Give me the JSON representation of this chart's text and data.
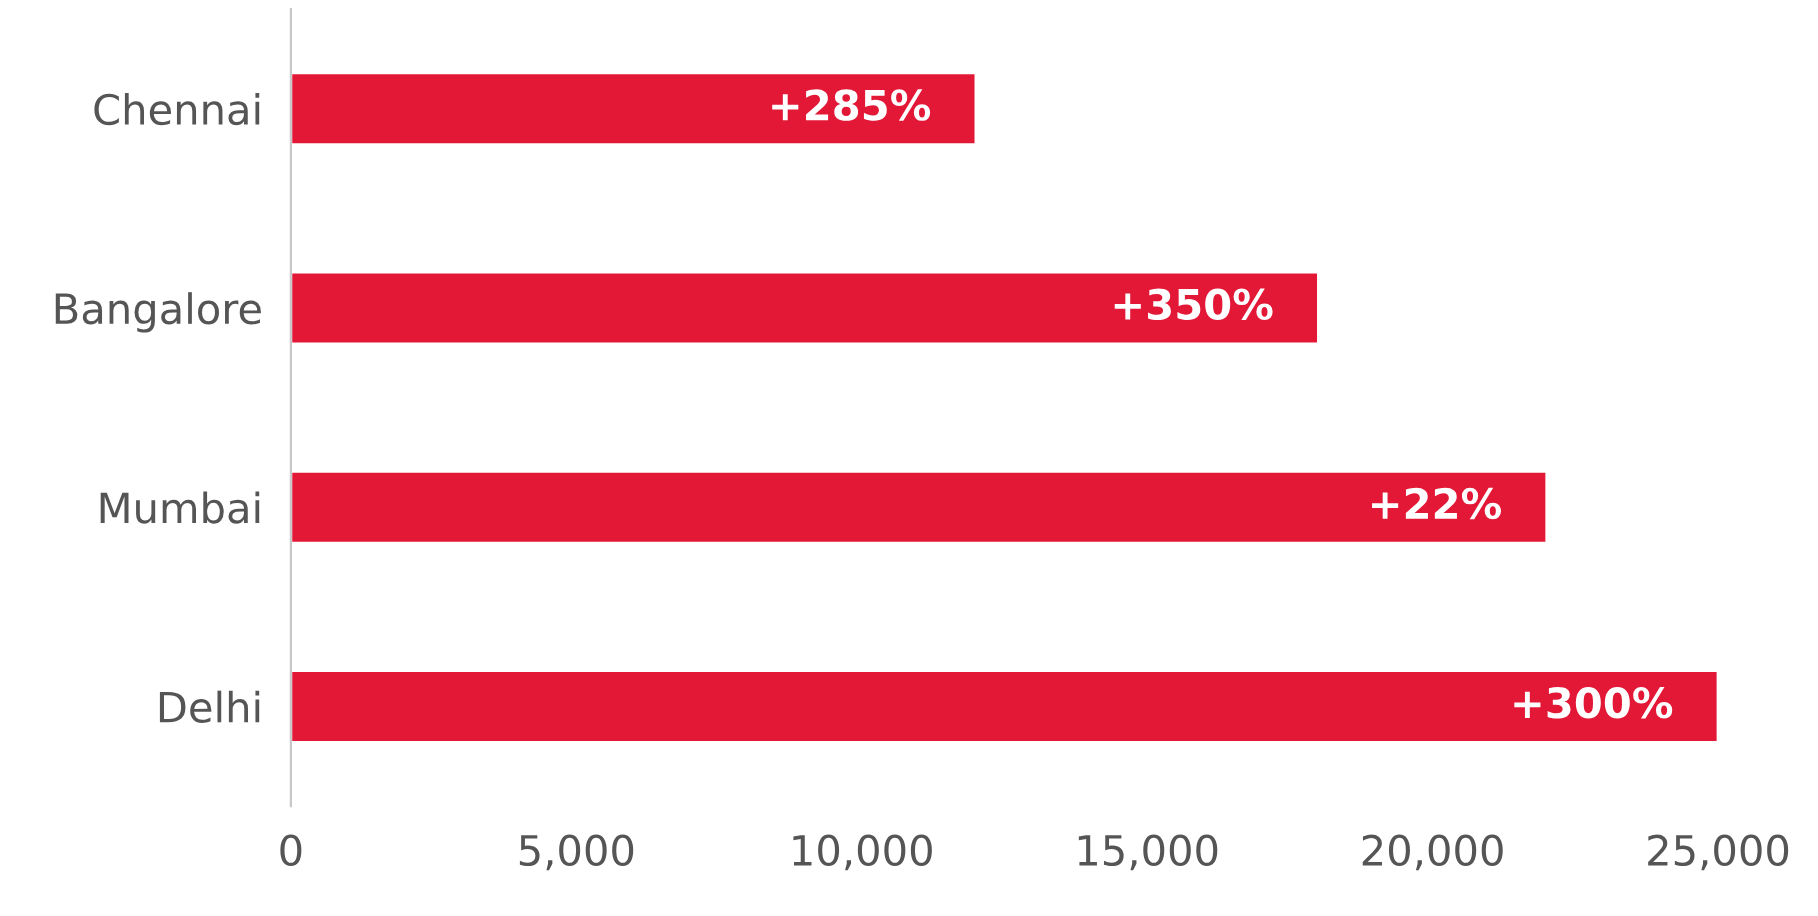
{
  "chart_data": {
    "type": "bar",
    "orientation": "horizontal",
    "categories": [
      "Chennai",
      "Bangalore",
      "Mumbai",
      "Delhi"
    ],
    "values": [
      12000,
      18000,
      22000,
      25000
    ],
    "annotations": [
      {
        "text": "+285%",
        "x": 12000,
        "y": "Chennai"
      },
      {
        "text": "+350%",
        "x": 18000,
        "y": "Bangalore"
      },
      {
        "text": "+22%",
        "x": 22000,
        "y": "Mumbai"
      },
      {
        "text": "+300%",
        "x": 25000,
        "y": "Delhi"
      }
    ],
    "color": "#e31837",
    "xlim": [
      0,
      25000
    ],
    "xticks": [
      0,
      {
        "value": 5000,
        "label": "5,000"
      },
      {
        "value": 10000,
        "label": "10,000"
      },
      {
        "value": 15000,
        "label": "15,000"
      },
      {
        "value": 20000,
        "label": "20,000"
      },
      {
        "value": 25000,
        "label": "25,000"
      }
    ],
    "grid": false,
    "legend": false
  }
}
